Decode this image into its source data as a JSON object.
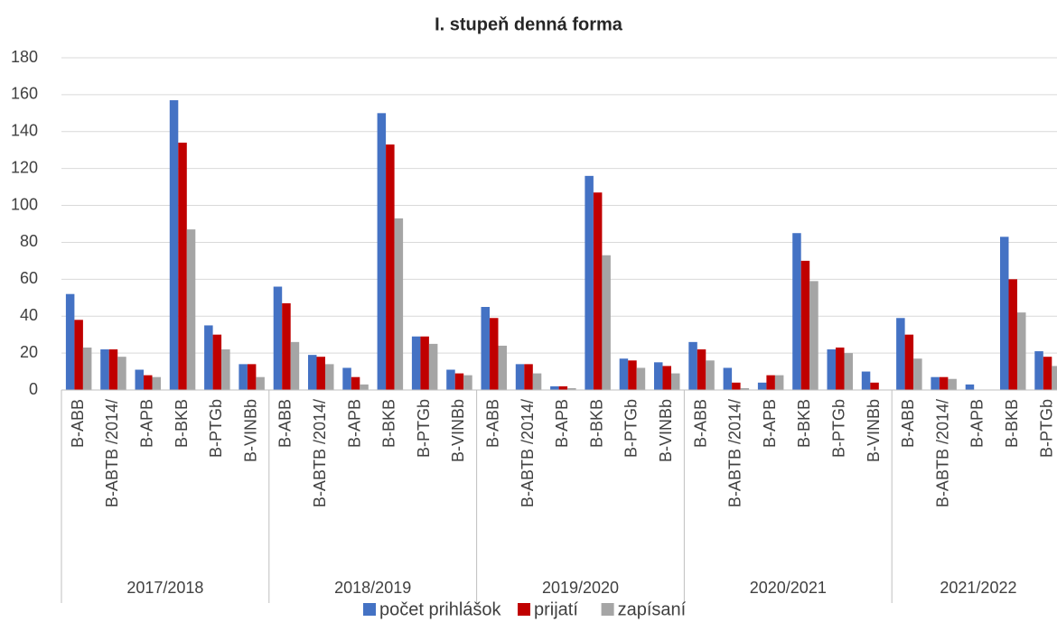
{
  "chart_data": {
    "type": "bar",
    "title": "I. stupeň denná forma",
    "groups": [
      {
        "name": "2017/2018",
        "categories": [
          "B-ABB",
          "B-ABTB /2014/",
          "B-APB",
          "B-BKB",
          "B-PTGb",
          "B-VINBb"
        ]
      },
      {
        "name": "2018/2019",
        "categories": [
          "B-ABB",
          "B-ABTB /2014/",
          "B-APB",
          "B-BKB",
          "B-PTGb",
          "B-VINBb"
        ]
      },
      {
        "name": "2019/2020",
        "categories": [
          "B-ABB",
          "B-ABTB /2014/",
          "B-APB",
          "B-BKB",
          "B-PTGb",
          "B-VINBb"
        ]
      },
      {
        "name": "2020/2021",
        "categories": [
          "B-ABB",
          "B-ABTB /2014/",
          "B-APB",
          "B-BKB",
          "B-PTGb",
          "B-VINBb"
        ]
      },
      {
        "name": "2021/2022",
        "categories": [
          "B-ABB",
          "B-ABTB /2014/",
          "B-APB",
          "B-BKB",
          "B-PTGb"
        ]
      }
    ],
    "series": [
      {
        "name": "počet prihlášok",
        "color": "#4472c4",
        "values": [
          52,
          22,
          11,
          157,
          35,
          14,
          56,
          19,
          12,
          150,
          29,
          11,
          45,
          14,
          2,
          116,
          17,
          15,
          26,
          12,
          4,
          85,
          22,
          10,
          39,
          7,
          3,
          83,
          21
        ]
      },
      {
        "name": "prijatí",
        "color": "#c00000",
        "values": [
          38,
          22,
          8,
          134,
          30,
          14,
          47,
          18,
          7,
          133,
          29,
          9,
          39,
          14,
          2,
          107,
          16,
          13,
          22,
          4,
          8,
          70,
          23,
          4,
          30,
          7,
          0,
          60,
          18
        ]
      },
      {
        "name": "zapísaní",
        "color": "#a5a5a5",
        "values": [
          23,
          18,
          7,
          87,
          22,
          7,
          26,
          14,
          3,
          93,
          25,
          8,
          24,
          9,
          1,
          73,
          12,
          9,
          16,
          1,
          8,
          59,
          20,
          0,
          17,
          6,
          0,
          42,
          13
        ]
      }
    ],
    "ylim": [
      0,
      180
    ],
    "yticks": [
      0,
      20,
      40,
      60,
      80,
      100,
      120,
      140,
      160,
      180
    ],
    "grid": true,
    "legend": "bottom"
  }
}
